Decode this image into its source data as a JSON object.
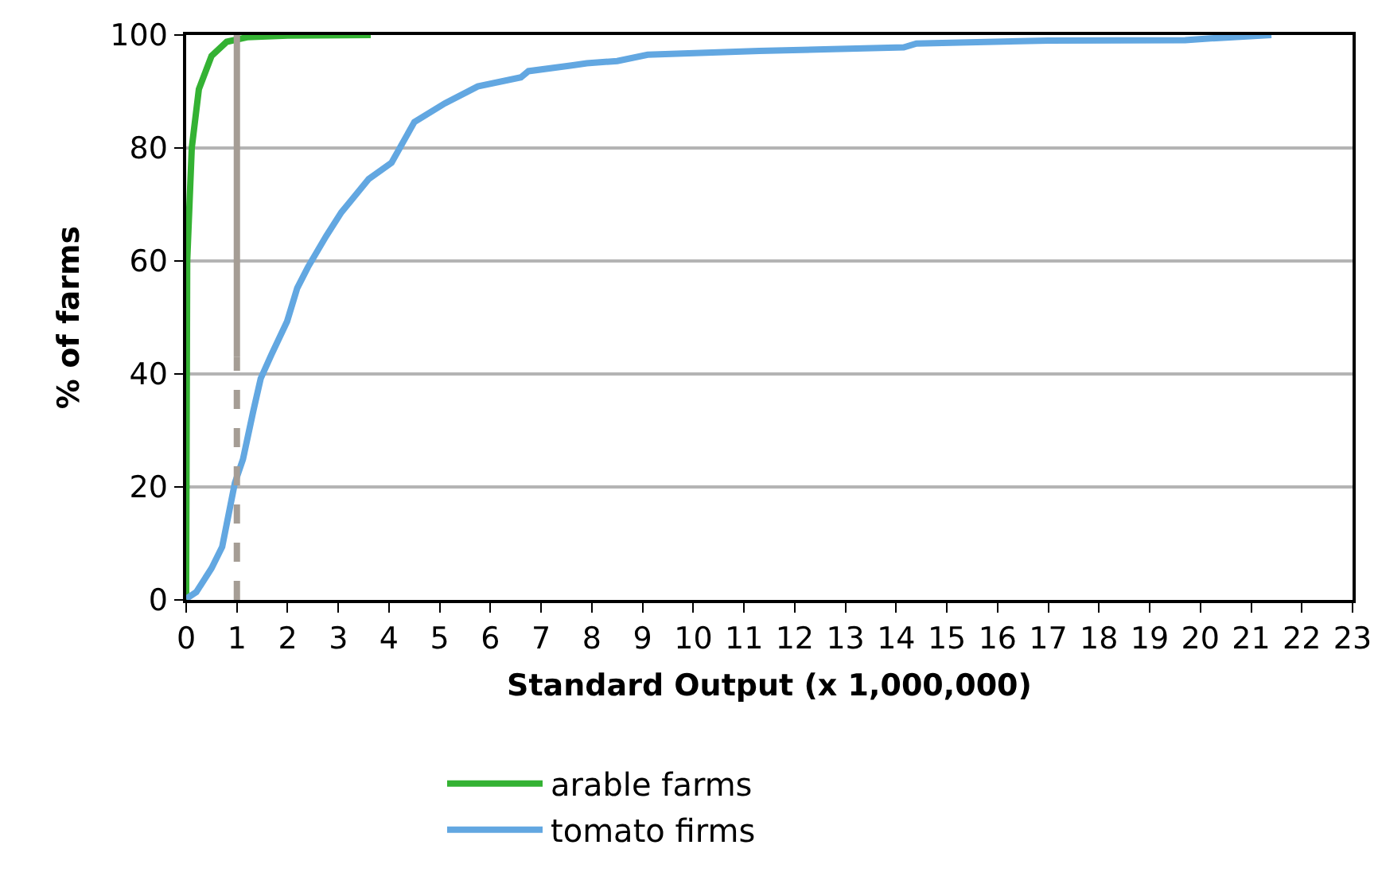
{
  "chart_data": {
    "type": "line",
    "xlabel": "Standard Output (x 1,000,000)",
    "ylabel": "% of farms",
    "xlim": [
      0,
      23
    ],
    "xticks": [
      0,
      1,
      2,
      3,
      4,
      5,
      6,
      7,
      8,
      9,
      10,
      11,
      12,
      13,
      14,
      15,
      16,
      17,
      18,
      19,
      20,
      21,
      22,
      23
    ],
    "ylim": [
      0,
      100
    ],
    "yticks": [
      0,
      20,
      40,
      60,
      80,
      100
    ],
    "grid": "y",
    "legend": "bottom",
    "marker": "none",
    "series": [
      {
        "name": "arable farms",
        "color": "#34b233",
        "x": [
          0,
          0,
          0.02,
          0.11,
          0.25,
          0.5,
          0.8,
          1.2,
          2,
          3.64
        ],
        "values": [
          0,
          4,
          60,
          80,
          90.4,
          96.3,
          98.8,
          99.6,
          99.9,
          100
        ]
      },
      {
        "name": "tomato firms",
        "color": "#62a7e1",
        "x": [
          0,
          0.2,
          0.5,
          0.71,
          0.96,
          1.12,
          1.32,
          1.47,
          1.68,
          1.99,
          2.19,
          2.4,
          2.76,
          3.06,
          3.6,
          4.05,
          4.5,
          5.1,
          5.75,
          6.6,
          6.75,
          7.6,
          7.9,
          8.5,
          9.1,
          11.3,
          14.15,
          14.4,
          17.0,
          19.7,
          20.2,
          21.4
        ],
        "values": [
          0.2,
          1.4,
          5.6,
          9.4,
          20.7,
          24.9,
          33.3,
          39.2,
          43.4,
          49.3,
          55.2,
          58.9,
          64.4,
          68.6,
          74.5,
          77.4,
          84.6,
          87.9,
          90.9,
          92.5,
          93.6,
          94.6,
          95.0,
          95.4,
          96.5,
          97.2,
          97.8,
          98.5,
          99.0,
          99.1,
          99.4,
          100
        ]
      },
      {
        "color": "#a59d95",
        "x": [
          1,
          1
        ],
        "values": [
          43,
          100
        ],
        "line_style": "solid"
      },
      {
        "color": "#a59d95",
        "x": [
          1,
          1
        ],
        "values": [
          0,
          43
        ],
        "line_style": "dashed"
      }
    ]
  }
}
